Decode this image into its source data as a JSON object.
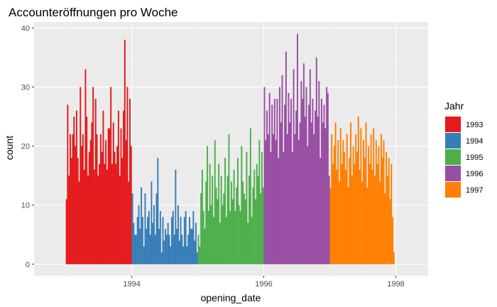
{
  "chart_data": {
    "type": "bar",
    "subtype": "histogram",
    "title": "Accounteröffnungen pro Woche",
    "xlabel": "opening_date",
    "ylabel": "count",
    "xlim": [
      1993.0,
      1998.0
    ],
    "ylim": [
      0,
      40
    ],
    "x_ticks": [
      1994,
      1996,
      1998
    ],
    "x_tick_labels": [
      "1994",
      "1996",
      "1998"
    ],
    "y_ticks": [
      0,
      10,
      20,
      30,
      40
    ],
    "y_tick_labels": [
      "0",
      "10",
      "20",
      "30",
      "40"
    ],
    "bin_width_weeks": 1,
    "grid": true,
    "legend": {
      "title": "Jahr",
      "position": "right"
    },
    "series": [
      {
        "name": "1993",
        "color": "#E41A1C",
        "start": 1993.0,
        "values": [
          11,
          27,
          15,
          22,
          18,
          22,
          25,
          20,
          26,
          18,
          14,
          30,
          20,
          22,
          16,
          33,
          25,
          15,
          19,
          21,
          24,
          30,
          16,
          28,
          22,
          15,
          17,
          22,
          19,
          26,
          17,
          21,
          16,
          23,
          23,
          30,
          17,
          24,
          19,
          17,
          20,
          26,
          15,
          23,
          18,
          26,
          38,
          21,
          30,
          14,
          28,
          20
        ]
      },
      {
        "name": "1994",
        "color": "#377EB8",
        "start": 1994.0,
        "values": [
          12,
          7,
          5,
          5,
          8,
          10,
          6,
          13,
          8,
          3,
          12,
          6,
          8,
          9,
          5,
          14,
          7,
          10,
          5,
          12,
          18,
          6,
          9,
          2,
          8,
          4,
          6,
          5,
          7,
          5,
          3,
          8,
          9,
          5,
          16,
          6,
          10,
          4,
          8,
          5,
          3,
          8,
          9,
          3,
          5,
          8,
          6,
          6,
          9,
          4,
          7,
          2
        ]
      },
      {
        "name": "1995",
        "color": "#4DAF4A",
        "start": 1995.0,
        "values": [
          5,
          3,
          12,
          16,
          9,
          6,
          14,
          20,
          9,
          17,
          10,
          15,
          8,
          21,
          13,
          11,
          17,
          7,
          15,
          10,
          12,
          18,
          8,
          15,
          22,
          9,
          14,
          11,
          16,
          9,
          13,
          18,
          10,
          9,
          20,
          14,
          12,
          11,
          19,
          7,
          15,
          23,
          8,
          13,
          16,
          11,
          17,
          15,
          21,
          12,
          19,
          13
        ]
      },
      {
        "name": "1996",
        "color": "#984EA3",
        "start": 1996.0,
        "values": [
          30,
          21,
          26,
          22,
          29,
          19,
          27,
          22,
          28,
          21,
          28,
          18,
          30,
          24,
          32,
          19,
          27,
          36,
          22,
          29,
          24,
          28,
          19,
          33,
          22,
          26,
          39,
          21,
          24,
          31,
          28,
          34,
          25,
          30,
          20,
          27,
          33,
          24,
          28,
          22,
          26,
          35,
          25,
          31,
          18,
          28,
          24,
          27,
          23,
          30,
          29,
          15
        ]
      },
      {
        "name": "1997",
        "color": "#FF7F00",
        "start": 1997.0,
        "values": [
          13,
          22,
          17,
          20,
          24,
          16,
          21,
          14,
          23,
          17,
          21,
          19,
          16,
          22,
          13,
          18,
          24,
          15,
          20,
          17,
          22,
          19,
          25,
          16,
          23,
          14,
          21,
          18,
          24,
          13,
          20,
          17,
          22,
          16,
          23,
          15,
          21,
          17,
          20,
          14,
          22,
          18,
          21,
          12,
          19,
          15,
          18,
          11,
          17,
          8,
          2,
          0
        ]
      }
    ]
  }
}
